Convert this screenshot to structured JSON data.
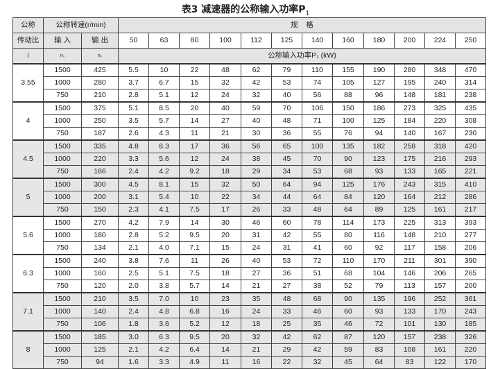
{
  "title": "表3  减速器的公称输入功率P",
  "title_sub": "1",
  "header": {
    "ratio_l1": "公称",
    "ratio_l2": "传动比",
    "ratio_l3": "i",
    "speed": "公称转速(r/min)",
    "input": "输 入",
    "output": "输 出",
    "n1": "n₁",
    "n2": "n₂",
    "size": "规    格",
    "power": "公称输入功率P₁ (kW)",
    "sizes": [
      "50",
      "63",
      "80",
      "100",
      "112",
      "125",
      "140",
      "160",
      "180",
      "200",
      "224",
      "250"
    ]
  },
  "groups": [
    {
      "ratio": "3.55",
      "shaded": false,
      "rows": [
        [
          "1500",
          "425",
          "5.5",
          "10",
          "22",
          "48",
          "62",
          "79",
          "110",
          "155",
          "190",
          "280",
          "348",
          "470"
        ],
        [
          "1000",
          "280",
          "3.7",
          "6.7",
          "15",
          "32",
          "42",
          "53",
          "74",
          "105",
          "127",
          "195",
          "240",
          "314"
        ],
        [
          "750",
          "210",
          "2.8",
          "5.1",
          "12",
          "24",
          "32",
          "40",
          "56",
          "88",
          "96",
          "148",
          "181",
          "238"
        ]
      ]
    },
    {
      "ratio": "4",
      "shaded": false,
      "rows": [
        [
          "1500",
          "375",
          "5.1",
          "8.5",
          "20",
          "40",
          "59",
          "70",
          "106",
          "150",
          "186",
          "273",
          "325",
          "435"
        ],
        [
          "1000",
          "250",
          "3.5",
          "5.7",
          "14",
          "27",
          "40",
          "48",
          "71",
          "100",
          "125",
          "184",
          "220",
          "308"
        ],
        [
          "750",
          "187",
          "2.6",
          "4.3",
          "11",
          "21",
          "30",
          "36",
          "55",
          "76",
          "94",
          "140",
          "167",
          "230"
        ]
      ]
    },
    {
      "ratio": "4.5",
      "shaded": true,
      "rows": [
        [
          "1500",
          "335",
          "4.8",
          "8.3",
          "17",
          "36",
          "56",
          "65",
          "100",
          "135",
          "182",
          "258",
          "318",
          "420"
        ],
        [
          "1000",
          "220",
          "3.3",
          "5.6",
          "12",
          "24",
          "38",
          "45",
          "70",
          "90",
          "123",
          "175",
          "216",
          "293"
        ],
        [
          "750",
          "166",
          "2.4",
          "4.2",
          "9.2",
          "18",
          "29",
          "34",
          "53",
          "68",
          "93",
          "133",
          "165",
          "221"
        ]
      ]
    },
    {
      "ratio": "5",
      "shaded": true,
      "rows": [
        [
          "1500",
          "300",
          "4.5",
          "8.1",
          "15",
          "32",
          "50",
          "64",
          "94",
          "125",
          "176",
          "243",
          "315",
          "410"
        ],
        [
          "1000",
          "200",
          "3.1",
          "5.4",
          "10",
          "22",
          "34",
          "44",
          "64",
          "84",
          "120",
          "164",
          "212",
          "286"
        ],
        [
          "750",
          "150",
          "2.3",
          "4.1",
          "7.5",
          "17",
          "26",
          "33",
          "48",
          "64",
          "89",
          "125",
          "161",
          "217"
        ]
      ]
    },
    {
      "ratio": "5.6",
      "shaded": false,
      "rows": [
        [
          "1500",
          "270",
          "4.2",
          "7.9",
          "14",
          "30",
          "46",
          "60",
          "78",
          "114",
          "173",
          "225",
          "313",
          "393"
        ],
        [
          "1000",
          "180",
          "2.8",
          "5.2",
          "9.5",
          "20",
          "31",
          "42",
          "55",
          "80",
          "116",
          "148",
          "210",
          "277"
        ],
        [
          "750",
          "134",
          "2.1",
          "4.0",
          "7.1",
          "15",
          "24",
          "31",
          "41",
          "60",
          "92",
          "117",
          "158",
          "206"
        ]
      ]
    },
    {
      "ratio": "6.3",
      "shaded": false,
      "rows": [
        [
          "1500",
          "240",
          "3.8",
          "7.6",
          "11",
          "26",
          "40",
          "53",
          "72",
          "110",
          "170",
          "211",
          "301",
          "390"
        ],
        [
          "1000",
          "160",
          "2.5",
          "5.1",
          "7.5",
          "18",
          "27",
          "36",
          "51",
          "68",
          "104",
          "146",
          "206",
          "265"
        ],
        [
          "750",
          "120",
          "2.0",
          "3.8",
          "5.7",
          "14",
          "21",
          "27",
          "38",
          "52",
          "79",
          "113",
          "157",
          "200"
        ]
      ]
    },
    {
      "ratio": "7.1",
      "shaded": true,
      "rows": [
        [
          "1500",
          "210",
          "3.5",
          "7.0",
          "10",
          "23",
          "35",
          "48",
          "68",
          "90",
          "135",
          "196",
          "252",
          "361"
        ],
        [
          "1000",
          "140",
          "2.4",
          "4.8",
          "6.8",
          "16",
          "24",
          "33",
          "46",
          "60",
          "93",
          "133",
          "170",
          "243"
        ],
        [
          "750",
          "106",
          "1.8",
          "3.6",
          "5.2",
          "12",
          "18",
          "25",
          "35",
          "46",
          "72",
          "101",
          "130",
          "185"
        ]
      ]
    },
    {
      "ratio": "8",
      "shaded": true,
      "rows": [
        [
          "1500",
          "185",
          "3.0",
          "6.3",
          "9.5",
          "20",
          "32",
          "42",
          "62",
          "87",
          "120",
          "157",
          "238",
          "326"
        ],
        [
          "1000",
          "125",
          "2.1",
          "4.2",
          "6.4",
          "14",
          "21",
          "29",
          "42",
          "59",
          "83",
          "108",
          "161",
          "220"
        ],
        [
          "750",
          "94",
          "1.6",
          "3.3",
          "4.9",
          "11",
          "16",
          "22",
          "32",
          "45",
          "64",
          "83",
          "122",
          "170"
        ]
      ]
    }
  ]
}
